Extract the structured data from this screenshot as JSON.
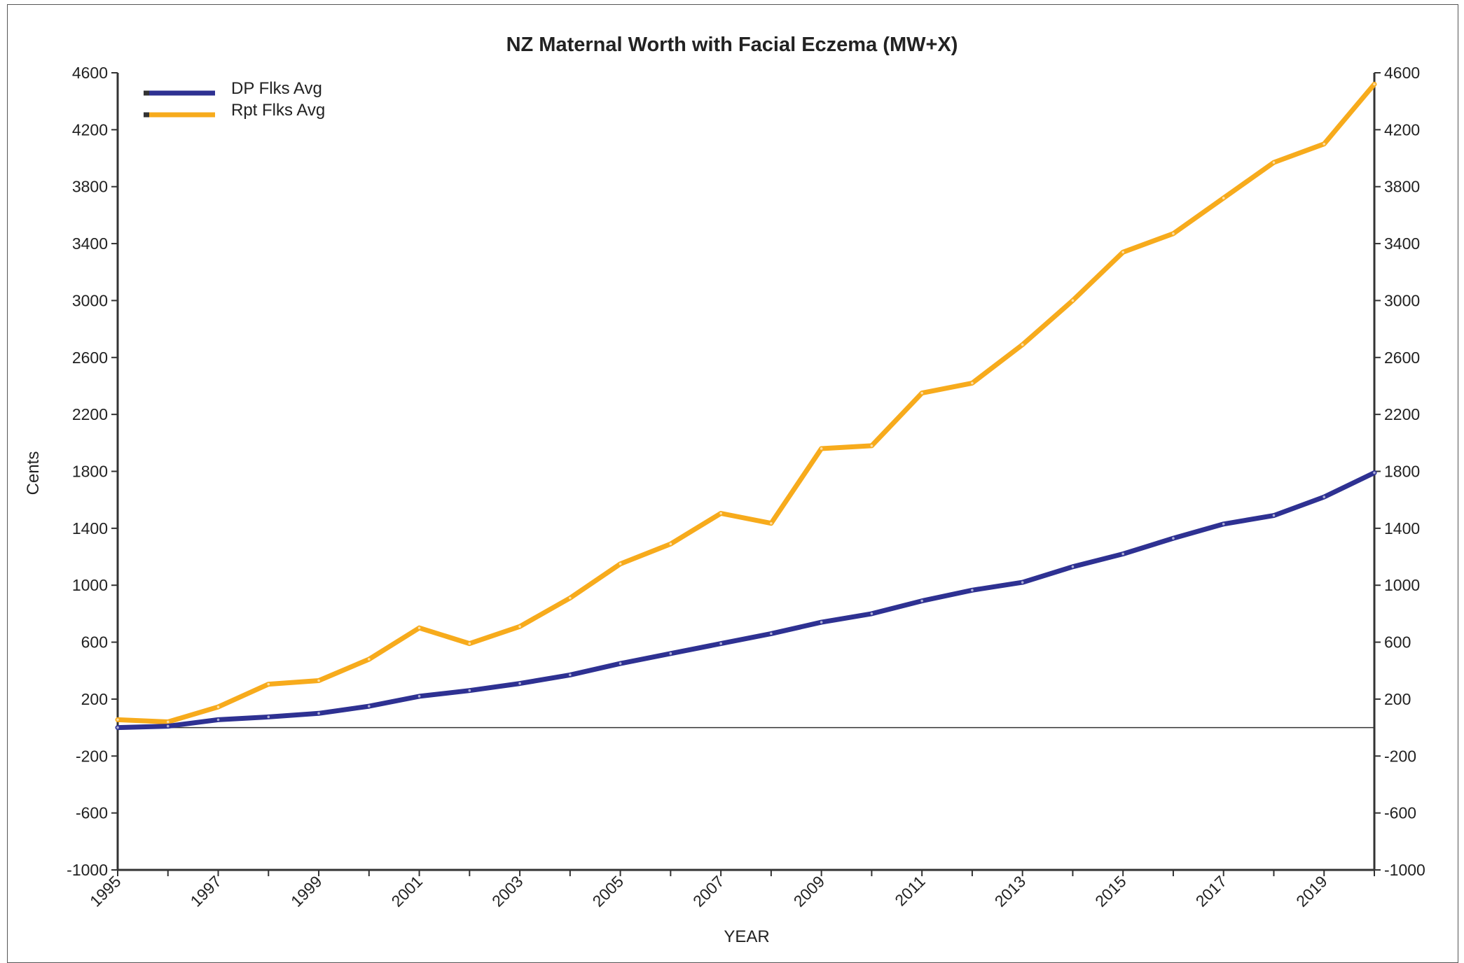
{
  "chart_data": {
    "type": "line",
    "title": "NZ Maternal Worth with Facial Eczema (MW+X)",
    "xlabel": "YEAR",
    "ylabel": "Cents",
    "xlim": [
      1995,
      2020
    ],
    "ylim": [
      -1000,
      4600
    ],
    "y_ticks": [
      4600,
      4200,
      3800,
      3400,
      3000,
      2600,
      2200,
      1800,
      1400,
      1000,
      600,
      200,
      -200,
      -600,
      -1000
    ],
    "x_tick_labels": [
      "1995",
      "1997",
      "1999",
      "2001",
      "2003",
      "2005",
      "2007",
      "2009",
      "2011",
      "2013",
      "2015",
      "2017",
      "2019"
    ],
    "right_axis_mirrors_left": true,
    "zero_line": true,
    "legend_position": "top-left",
    "x": [
      1995,
      1996,
      1997,
      1998,
      1999,
      2000,
      2001,
      2002,
      2003,
      2004,
      2005,
      2006,
      2007,
      2008,
      2009,
      2010,
      2011,
      2012,
      2013,
      2014,
      2015,
      2016,
      2017,
      2018,
      2019,
      2020
    ],
    "series": [
      {
        "name": "DP Flks Avg",
        "color": "#2e3192",
        "values": [
          0,
          10,
          55,
          75,
          100,
          150,
          220,
          260,
          310,
          370,
          450,
          520,
          590,
          660,
          740,
          800,
          890,
          965,
          1020,
          1130,
          1220,
          1330,
          1430,
          1490,
          1620,
          1790
        ]
      },
      {
        "name": "Rpt Flks Avg",
        "color": "#f7ab1c",
        "values": [
          55,
          40,
          145,
          305,
          330,
          480,
          700,
          590,
          710,
          910,
          1150,
          1290,
          1505,
          1435,
          1960,
          1980,
          2350,
          2420,
          2690,
          3000,
          3340,
          3470,
          3720,
          3970,
          4100,
          4520
        ]
      }
    ]
  }
}
